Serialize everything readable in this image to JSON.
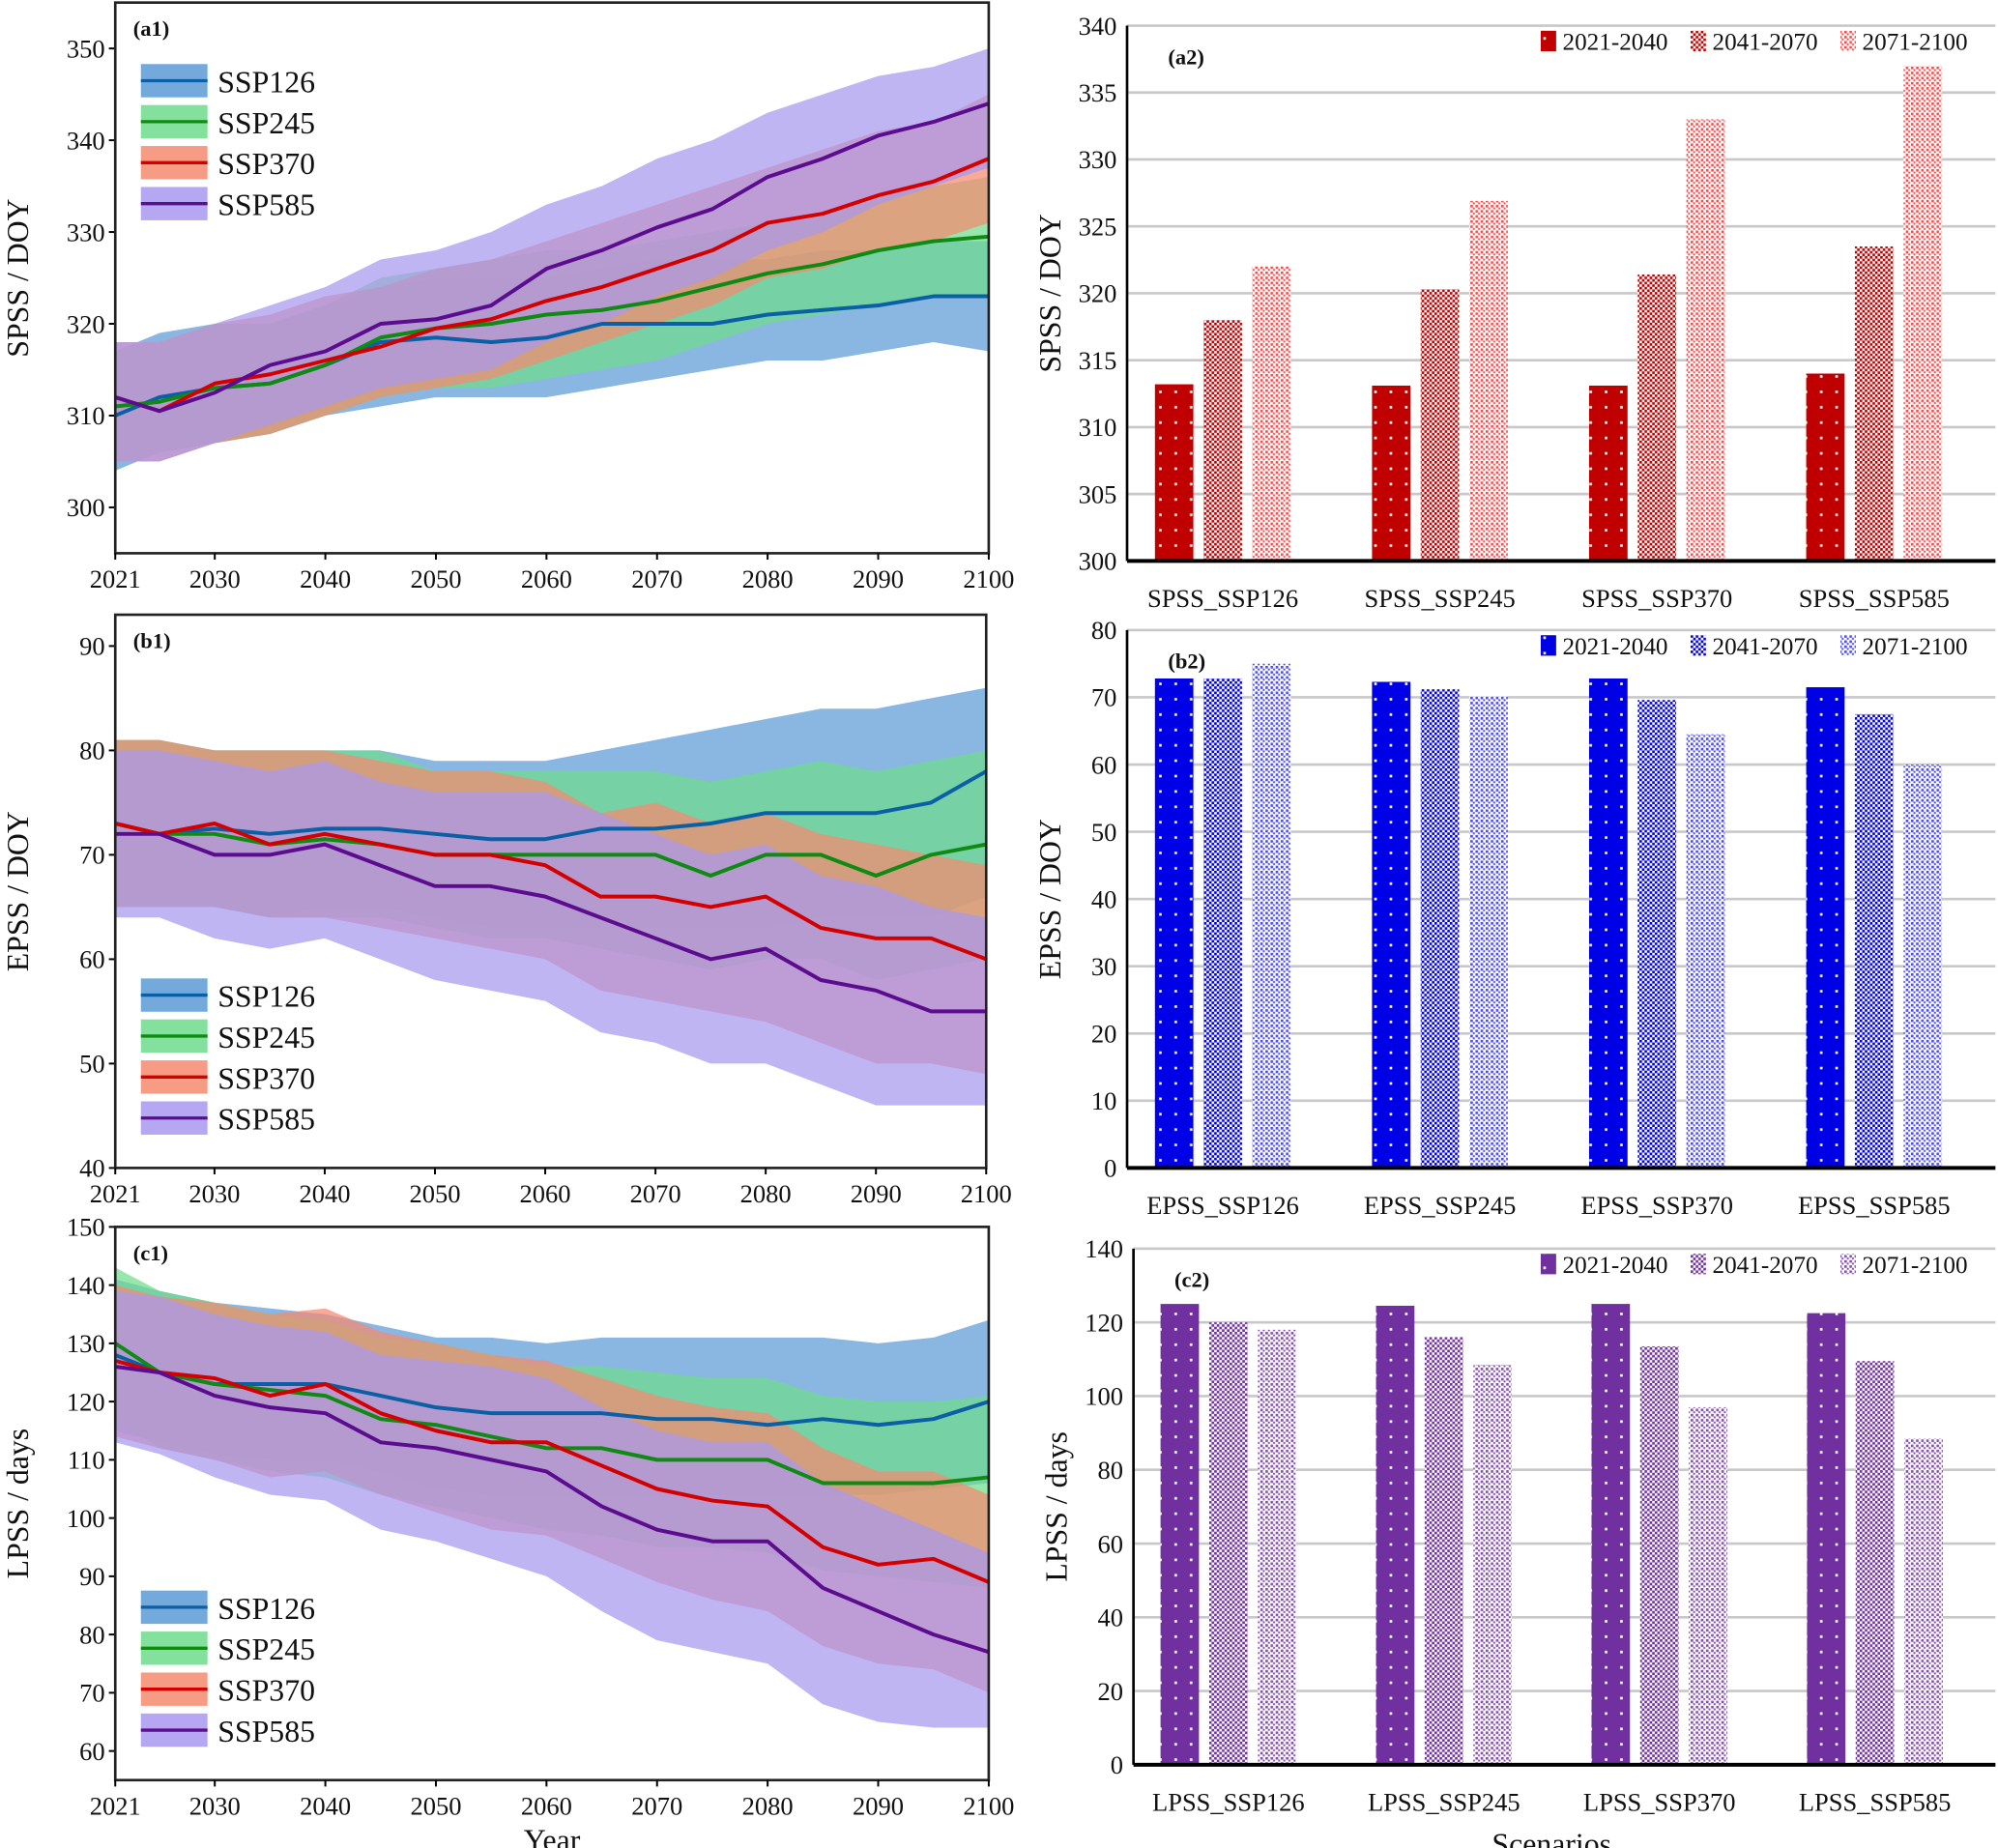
{
  "chart_data": [
    {
      "id": "a1",
      "type": "area",
      "panel_label": "(a1)",
      "xlabel": "",
      "ylabel": "SPSS / DOY",
      "xlim": [
        2021,
        2100
      ],
      "ylim": [
        295,
        355
      ],
      "xticks": [
        2021,
        2030,
        2040,
        2050,
        2060,
        2070,
        2080,
        2090,
        2100
      ],
      "yticks": [
        300,
        310,
        320,
        330,
        340,
        350
      ],
      "legend": "top-left",
      "x": [
        2021,
        2025,
        2030,
        2035,
        2040,
        2045,
        2050,
        2055,
        2060,
        2065,
        2070,
        2075,
        2080,
        2085,
        2090,
        2095,
        2100
      ],
      "series": [
        {
          "name": "SSP126",
          "line_color": "#0b5fa5",
          "band_color": "#5b9bd5",
          "values": [
            310,
            312,
            313,
            313.5,
            315.5,
            318,
            318.5,
            318,
            318.5,
            320,
            320,
            320,
            321,
            321.5,
            322,
            323,
            323
          ],
          "lower": [
            304,
            306,
            307,
            308,
            310,
            311,
            312,
            312,
            312,
            313,
            314,
            315,
            316,
            316,
            317,
            318,
            317
          ],
          "upper": [
            317,
            319,
            320,
            320,
            322,
            324,
            325,
            325,
            325,
            326,
            327,
            327,
            327,
            328,
            328,
            329,
            329
          ]
        },
        {
          "name": "SSP245",
          "line_color": "#0f8a12",
          "band_color": "#6fdc8c",
          "values": [
            311,
            311.5,
            313,
            313.5,
            315.5,
            318.5,
            319.5,
            320,
            321,
            321.5,
            322.5,
            324,
            325.5,
            326.5,
            328,
            329,
            329.5
          ],
          "lower": [
            305,
            306,
            307,
            308,
            310,
            312,
            313,
            313,
            314,
            315,
            316,
            318,
            320,
            321,
            322,
            323,
            323
          ],
          "upper": [
            317,
            318,
            320,
            320,
            322,
            325,
            326,
            327,
            328,
            328,
            329,
            330,
            331,
            332,
            334,
            335,
            336
          ]
        },
        {
          "name": "SSP370",
          "line_color": "#d40000",
          "band_color": "#f5896f",
          "values": [
            312,
            310.5,
            313.5,
            314.5,
            316,
            317.5,
            319.5,
            320.5,
            322.5,
            324,
            326,
            328,
            331,
            332,
            334,
            335.5,
            338
          ],
          "lower": [
            305,
            305,
            307,
            308,
            310,
            312,
            313,
            314,
            316,
            318,
            320,
            322,
            325,
            326,
            328,
            329,
            331
          ],
          "upper": [
            318,
            318,
            320,
            321,
            323,
            324,
            326,
            327,
            329,
            331,
            333,
            335,
            337,
            339,
            341,
            342,
            345
          ]
        },
        {
          "name": "SSP585",
          "line_color": "#5c0d8f",
          "band_color": "#a898ef",
          "values": [
            312,
            310.5,
            312.5,
            315.5,
            317,
            320,
            320.5,
            322,
            326,
            328,
            330.5,
            332.5,
            336,
            338,
            340.5,
            342,
            344
          ],
          "lower": [
            305,
            305,
            307,
            309,
            311,
            313,
            314,
            315,
            318,
            320,
            323,
            325,
            328,
            330,
            333,
            335,
            337
          ],
          "upper": [
            318,
            318,
            320,
            322,
            324,
            327,
            328,
            330,
            333,
            335,
            338,
            340,
            343,
            345,
            347,
            348,
            350
          ]
        }
      ]
    },
    {
      "id": "a2",
      "type": "bar",
      "panel_label": "(a2)",
      "xlabel": "",
      "ylabel": "SPSS / DOY",
      "ylim": [
        300,
        340
      ],
      "yticks": [
        300,
        305,
        310,
        315,
        320,
        325,
        330,
        335,
        340
      ],
      "legend": "top-right",
      "grid": true,
      "base_color": "#c00000",
      "light_color": "#ff2a2a",
      "categories": [
        "SPSS_SSP126",
        "SPSS_SSP245",
        "SPSS_SSP370",
        "SPSS_SSP585"
      ],
      "series": [
        {
          "name": "2021-2040",
          "values": [
            313.2,
            313.1,
            313.1,
            314.0
          ]
        },
        {
          "name": "2041-2070",
          "values": [
            318.0,
            320.3,
            321.4,
            323.5
          ]
        },
        {
          "name": "2071-2100",
          "values": [
            322.0,
            326.9,
            333.0,
            337.0
          ]
        }
      ]
    },
    {
      "id": "b1",
      "type": "area",
      "panel_label": "(b1)",
      "xlabel": "",
      "ylabel": "EPSS / DOY",
      "xlim": [
        2021,
        2100
      ],
      "ylim": [
        40,
        93
      ],
      "xticks": [
        2021,
        2030,
        2040,
        2050,
        2060,
        2070,
        2080,
        2090,
        2100
      ],
      "yticks": [
        40,
        50,
        60,
        70,
        80,
        90
      ],
      "legend": "bottom-left",
      "x": [
        2021,
        2025,
        2030,
        2035,
        2040,
        2045,
        2050,
        2055,
        2060,
        2065,
        2070,
        2075,
        2080,
        2085,
        2090,
        2095,
        2100
      ],
      "series": [
        {
          "name": "SSP126",
          "line_color": "#0b5fa5",
          "band_color": "#5b9bd5",
          "values": [
            73,
            72,
            72.5,
            72,
            72.5,
            72.5,
            72,
            71.5,
            71.5,
            72.5,
            72.5,
            73,
            74,
            74,
            74,
            75,
            78
          ],
          "lower": [
            65,
            65,
            65,
            64,
            65,
            65,
            64,
            63,
            63,
            63,
            63,
            63,
            63,
            64,
            64,
            64,
            66
          ],
          "upper": [
            81,
            81,
            80,
            80,
            80,
            80,
            79,
            79,
            79,
            80,
            81,
            82,
            83,
            84,
            84,
            85,
            86
          ]
        },
        {
          "name": "SSP245",
          "line_color": "#0f8a12",
          "band_color": "#6fdc8c",
          "values": [
            73,
            72,
            72,
            71,
            71.5,
            71,
            70,
            70,
            70,
            70,
            70,
            68,
            70,
            70,
            68,
            70,
            71
          ],
          "lower": [
            65,
            65,
            65,
            64,
            64,
            64,
            63,
            62,
            62,
            61,
            60,
            59,
            60,
            60,
            58,
            59,
            60
          ],
          "upper": [
            81,
            81,
            80,
            80,
            80,
            80,
            78,
            78,
            78,
            78,
            78,
            77,
            78,
            79,
            78,
            79,
            80
          ]
        },
        {
          "name": "SSP370",
          "line_color": "#d40000",
          "band_color": "#f5896f",
          "values": [
            73,
            72,
            73,
            71,
            72,
            71,
            70,
            70,
            69,
            66,
            66,
            65,
            66,
            63,
            62,
            62,
            60
          ],
          "lower": [
            65,
            65,
            65,
            64,
            64,
            63,
            62,
            61,
            60,
            57,
            56,
            55,
            54,
            52,
            50,
            50,
            49
          ],
          "upper": [
            81,
            81,
            80,
            80,
            80,
            79,
            78,
            78,
            77,
            74,
            75,
            73,
            74,
            72,
            71,
            70,
            69
          ]
        },
        {
          "name": "SSP585",
          "line_color": "#5c0d8f",
          "band_color": "#a898ef",
          "values": [
            72,
            72,
            70,
            70,
            71,
            69,
            67,
            67,
            66,
            64,
            62,
            60,
            61,
            58,
            57,
            55,
            55
          ],
          "lower": [
            64,
            64,
            62,
            61,
            62,
            60,
            58,
            57,
            56,
            53,
            52,
            50,
            50,
            48,
            46,
            46,
            46
          ],
          "upper": [
            80,
            80,
            79,
            78,
            79,
            77,
            76,
            76,
            76,
            74,
            72,
            70,
            71,
            68,
            67,
            65,
            64
          ]
        }
      ]
    },
    {
      "id": "b2",
      "type": "bar",
      "panel_label": "(b2)",
      "xlabel": "",
      "ylabel": "EPSS / DOY",
      "ylim": [
        0,
        80
      ],
      "yticks": [
        0,
        10,
        20,
        30,
        40,
        50,
        60,
        70,
        80
      ],
      "legend": "top-right",
      "grid": true,
      "base_color": "#0000e6",
      "light_color": "#2a2aff",
      "categories": [
        "EPSS_SSP126",
        "EPSS_SSP245",
        "EPSS_SSP370",
        "EPSS_SSP585"
      ],
      "series": [
        {
          "name": "2021-2040",
          "values": [
            72.8,
            72.3,
            72.8,
            71.5
          ]
        },
        {
          "name": "2041-2070",
          "values": [
            72.8,
            71.2,
            69.6,
            67.5
          ]
        },
        {
          "name": "2071-2100",
          "values": [
            75.0,
            70.2,
            64.5,
            60.0
          ]
        }
      ]
    },
    {
      "id": "c1",
      "type": "area",
      "panel_label": "(c1)",
      "xlabel": "Year",
      "ylabel": "LPSS / days",
      "xlim": [
        2021,
        2100
      ],
      "ylim": [
        55,
        150
      ],
      "xticks": [
        2021,
        2030,
        2040,
        2050,
        2060,
        2070,
        2080,
        2090,
        2100
      ],
      "yticks": [
        60,
        70,
        80,
        90,
        100,
        110,
        120,
        130,
        140,
        150
      ],
      "legend": "bottom-left",
      "x": [
        2021,
        2025,
        2030,
        2035,
        2040,
        2045,
        2050,
        2055,
        2060,
        2065,
        2070,
        2075,
        2080,
        2085,
        2090,
        2095,
        2100
      ],
      "series": [
        {
          "name": "SSP126",
          "line_color": "#0b5fa5",
          "band_color": "#5b9bd5",
          "values": [
            128,
            125,
            123,
            123,
            123,
            121,
            119,
            118,
            118,
            118,
            117,
            117,
            116,
            117,
            116,
            117,
            120
          ],
          "lower": [
            115,
            113,
            111,
            110,
            110,
            108,
            105,
            104,
            104,
            104,
            104,
            104,
            104,
            104,
            104,
            105,
            106
          ],
          "upper": [
            141,
            139,
            137,
            136,
            135,
            133,
            131,
            131,
            130,
            131,
            131,
            131,
            131,
            131,
            130,
            131,
            134
          ]
        },
        {
          "name": "SSP245",
          "line_color": "#0f8a12",
          "band_color": "#6fdc8c",
          "values": [
            130,
            125,
            123,
            122,
            121,
            117,
            116,
            114,
            112,
            112,
            110,
            110,
            110,
            106,
            106,
            106,
            107
          ],
          "lower": [
            117,
            112,
            110,
            108,
            107,
            104,
            102,
            100,
            98,
            97,
            95,
            95,
            94,
            91,
            90,
            89,
            88
          ],
          "upper": [
            143,
            139,
            137,
            135,
            134,
            131,
            130,
            128,
            126,
            126,
            125,
            124,
            124,
            121,
            120,
            120,
            121
          ]
        },
        {
          "name": "SSP370",
          "line_color": "#d40000",
          "band_color": "#f5896f",
          "values": [
            127,
            125,
            124,
            121,
            123,
            118,
            115,
            113,
            113,
            109,
            105,
            103,
            102,
            95,
            92,
            93,
            89
          ],
          "lower": [
            114,
            112,
            110,
            107,
            108,
            104,
            101,
            98,
            97,
            93,
            89,
            86,
            84,
            78,
            75,
            74,
            70
          ],
          "upper": [
            140,
            138,
            137,
            135,
            136,
            132,
            130,
            128,
            127,
            124,
            121,
            119,
            118,
            112,
            108,
            108,
            104
          ]
        },
        {
          "name": "SSP585",
          "line_color": "#5c0d8f",
          "band_color": "#a898ef",
          "values": [
            126,
            125,
            121,
            119,
            118,
            113,
            112,
            110,
            108,
            102,
            98,
            96,
            96,
            88,
            84,
            80,
            77
          ],
          "lower": [
            113,
            111,
            107,
            104,
            103,
            98,
            96,
            93,
            90,
            84,
            79,
            77,
            75,
            68,
            65,
            64,
            64
          ],
          "upper": [
            139,
            138,
            135,
            133,
            132,
            128,
            127,
            126,
            124,
            119,
            115,
            113,
            113,
            106,
            102,
            98,
            94
          ]
        }
      ]
    },
    {
      "id": "c2",
      "type": "bar",
      "panel_label": "(c2)",
      "xlabel": "Scenarios",
      "ylabel": "LPSS / days",
      "ylim": [
        0,
        140
      ],
      "yticks": [
        0,
        20,
        40,
        60,
        80,
        100,
        120,
        140
      ],
      "legend": "top-right",
      "grid": true,
      "base_color": "#7030a0",
      "light_color": "#7030a0",
      "categories": [
        "LPSS_SSP126",
        "LPSS_SSP245",
        "LPSS_SSP370",
        "LPSS_SSP585"
      ],
      "series": [
        {
          "name": "2021-2040",
          "values": [
            125.0,
            124.5,
            125.0,
            122.5
          ]
        },
        {
          "name": "2041-2070",
          "values": [
            120.0,
            116.0,
            113.5,
            109.5
          ]
        },
        {
          "name": "2071-2100",
          "values": [
            118.0,
            108.5,
            97.0,
            88.5
          ]
        }
      ]
    }
  ]
}
